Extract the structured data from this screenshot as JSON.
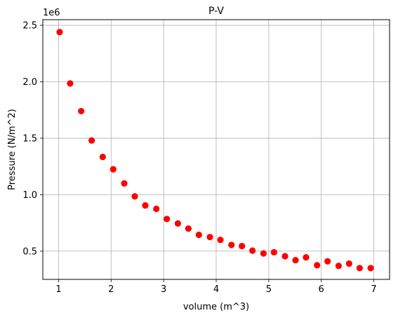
{
  "chart_data": {
    "type": "scatter",
    "title": "P-V",
    "xlabel": "volume (m^3)",
    "ylabel": "Pressure (N/m^2)",
    "y_offset_label": "1e6",
    "xlim": [
      0.7,
      7.3
    ],
    "ylim": [
      250000,
      2550000
    ],
    "x_ticks": [
      1,
      2,
      3,
      4,
      5,
      6,
      7
    ],
    "x_tick_labels": [
      "1",
      "2",
      "3",
      "4",
      "5",
      "6",
      "7"
    ],
    "y_ticks": [
      500000,
      1000000,
      1500000,
      2000000,
      2500000
    ],
    "y_tick_labels": [
      "0.5",
      "1.0",
      "1.5",
      "2.0",
      "2.5"
    ],
    "grid": true,
    "marker_color": "#ff0000",
    "series": [
      {
        "x": [
          1.02,
          1.22,
          1.43,
          1.63,
          1.84,
          2.04,
          2.25,
          2.45,
          2.65,
          2.86,
          3.06,
          3.27,
          3.47,
          3.67,
          3.88,
          4.08,
          4.29,
          4.49,
          4.69,
          4.9,
          5.1,
          5.31,
          5.51,
          5.71,
          5.92,
          6.12,
          6.33,
          6.53,
          6.73,
          6.94
        ],
        "y": [
          2440000,
          1985000,
          1740000,
          1480000,
          1335000,
          1225000,
          1100000,
          985000,
          905000,
          875000,
          785000,
          745000,
          700000,
          645000,
          625000,
          600000,
          555000,
          545000,
          505000,
          480000,
          490000,
          455000,
          420000,
          445000,
          375000,
          410000,
          370000,
          390000,
          350000,
          350000
        ]
      }
    ]
  }
}
